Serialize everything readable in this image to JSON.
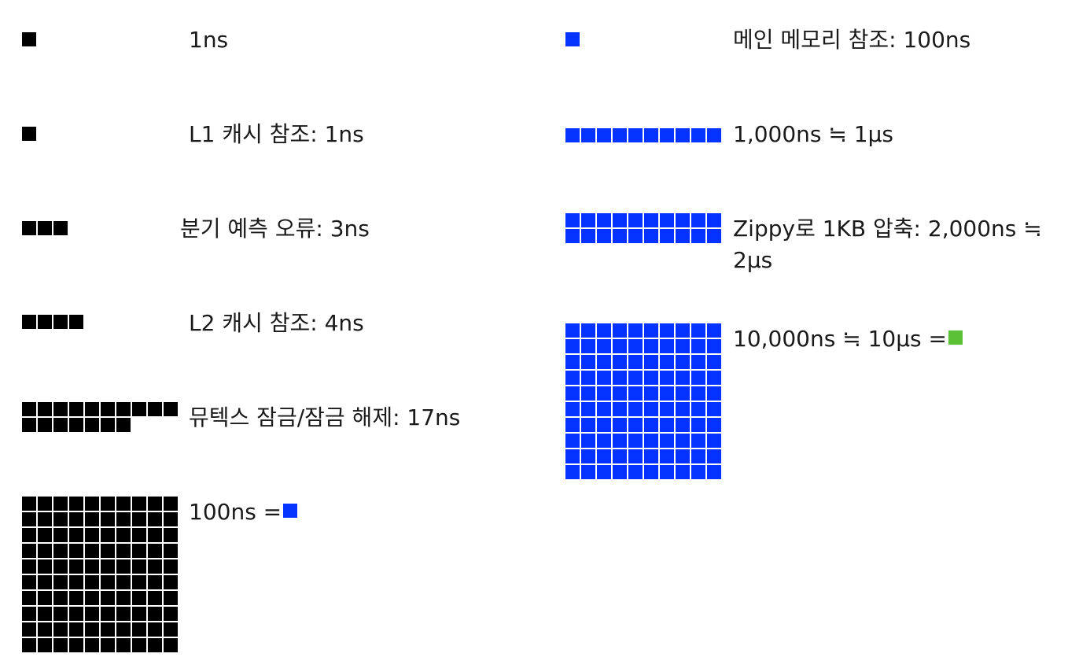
{
  "colors": {
    "ns_cell": "#000000",
    "hundred_ns_cell": "#0433ff",
    "ten_us_cell": "#5bc236"
  },
  "rows": [
    {
      "label": "1ns",
      "units": 1,
      "color": "black"
    },
    {
      "label": "L1 캐시 참조: 1ns",
      "units": 1,
      "color": "black"
    },
    {
      "label": "분기 예측 오류: 3ns",
      "units": 3,
      "color": "black"
    },
    {
      "label": "L2 캐시 참조: 4ns",
      "units": 4,
      "color": "black"
    },
    {
      "label": "뮤텍스 잠금/잠금 해제: 17ns",
      "units": 17,
      "color": "black"
    },
    {
      "label": "100ns =",
      "units": 100,
      "color": "black",
      "equals_swatch": "blue"
    },
    {
      "label": "메인 메모리 참조: 100ns",
      "units": 1,
      "color": "blue"
    },
    {
      "label": "1,000ns ≒ 1μs",
      "units": 10,
      "color": "blue"
    },
    {
      "label": "Zippy로 1KB 압축: 2,000ns ≒ 2μs",
      "units": 20,
      "color": "blue"
    },
    {
      "label": "10,000ns ≒ 10μs =",
      "units": 100,
      "color": "blue",
      "equals_swatch": "green"
    }
  ]
}
